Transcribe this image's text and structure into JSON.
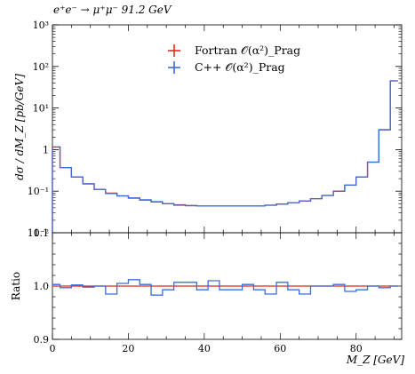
{
  "chart_data": [
    {
      "type": "line",
      "title": "e⁺e⁻ → μ⁺μ⁻ 91.2 GeV",
      "ylabel": "dσ / dM_Z [pb/GeV]",
      "xlabel": "",
      "yscale": "log",
      "xlim": [
        0,
        92
      ],
      "ylim": [
        0.01,
        1000
      ],
      "ytick_labels": [
        "10⁻²",
        "10⁻¹",
        "1",
        "10¹",
        "10²",
        "10³"
      ],
      "legend_position": "top-center",
      "colors": {
        "fortran": "#e8281e",
        "cpp": "#3a6cdc"
      },
      "bin_edges": [
        0,
        2,
        5,
        8,
        11,
        14,
        17,
        20,
        23,
        26,
        29,
        32,
        35,
        38,
        41,
        44,
        47,
        50,
        53,
        56,
        59,
        62,
        65,
        68,
        71,
        74,
        77,
        80,
        83,
        86,
        89,
        91
      ],
      "series": [
        {
          "name": "Fortran 𝒪(α²)_Prag",
          "values": [
            1.15,
            0.37,
            0.22,
            0.15,
            0.11,
            0.09,
            0.077,
            0.068,
            0.061,
            0.055,
            0.05,
            0.047,
            0.045,
            0.044,
            0.044,
            0.044,
            0.044,
            0.044,
            0.044,
            0.046,
            0.049,
            0.053,
            0.058,
            0.066,
            0.079,
            0.1,
            0.14,
            0.22,
            0.5,
            3.0,
            45.0
          ]
        },
        {
          "name": "C++ 𝒪(α²)_Prag",
          "values": [
            1.16,
            0.37,
            0.22,
            0.15,
            0.11,
            0.088,
            0.077,
            0.069,
            0.062,
            0.056,
            0.05,
            0.046,
            0.045,
            0.044,
            0.044,
            0.044,
            0.044,
            0.044,
            0.044,
            0.046,
            0.049,
            0.053,
            0.058,
            0.066,
            0.079,
            0.099,
            0.14,
            0.22,
            0.5,
            3.0,
            45.0
          ]
        }
      ]
    },
    {
      "type": "line",
      "title": "",
      "ylabel": "Ratio",
      "xlabel": "M_Z [GeV]",
      "xlim": [
        0,
        92
      ],
      "ylim": [
        0.9,
        1.1
      ],
      "xtick_labels": [
        "0",
        "20",
        "40",
        "60",
        "80"
      ],
      "ytick_labels": [
        "0.9",
        "1.0",
        "1.1"
      ],
      "bin_edges": [
        0,
        2,
        5,
        8,
        11,
        14,
        17,
        20,
        23,
        26,
        29,
        32,
        35,
        38,
        41,
        44,
        47,
        50,
        53,
        56,
        59,
        62,
        65,
        68,
        71,
        74,
        77,
        80,
        83,
        86,
        89,
        91
      ],
      "series": [
        {
          "name": "Fortran",
          "values": [
            1.0,
            1.0,
            1.0,
            1.0,
            1.0,
            1.0,
            1.0,
            1.0,
            1.0,
            1.0,
            1.0,
            1.0,
            1.0,
            1.0,
            1.0,
            1.0,
            1.0,
            1.0,
            1.0,
            1.0,
            1.0,
            1.0,
            1.0,
            1.0,
            1.0,
            1.0,
            1.0,
            1.0,
            1.0,
            1.0,
            1.0
          ]
        },
        {
          "name": "C++",
          "values": [
            1.003,
            0.997,
            1.002,
            0.998,
            1.0,
            0.985,
            1.005,
            1.012,
            1.003,
            0.983,
            0.993,
            1.007,
            1.007,
            0.993,
            1.01,
            0.993,
            0.993,
            1.003,
            0.993,
            0.985,
            1.007,
            0.993,
            0.985,
            1.0,
            1.0,
            1.003,
            0.99,
            0.993,
            1.0,
            0.997,
            1.0
          ]
        }
      ]
    }
  ]
}
